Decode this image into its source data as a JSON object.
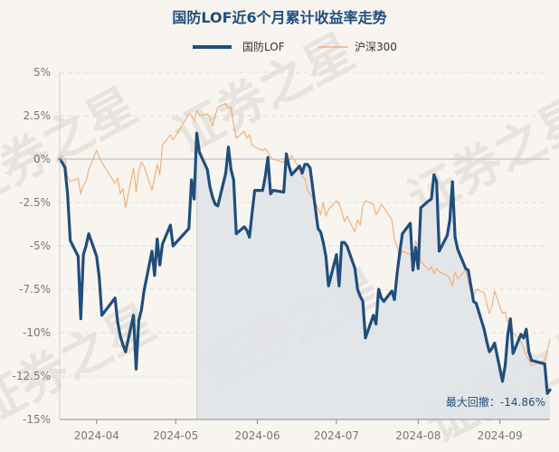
{
  "chart_data": {
    "type": "line",
    "title": "国防LOF近6个月累计收益率走势",
    "legend_position": "top-center",
    "grid": true,
    "ylim": [
      -15,
      5
    ],
    "y_ticks": [
      5,
      2.5,
      0,
      -2.5,
      -5,
      -7.5,
      -10,
      -12.5,
      -15
    ],
    "y_tick_labels": [
      "5%",
      "2.5%",
      "0%",
      "-2.5%",
      "-5%",
      "-7.5%",
      "-10%",
      "-12.5%",
      "-15%"
    ],
    "x_range": [
      "2024-03-18",
      "2024-09-20"
    ],
    "x_ticks": [
      "2024-04-01",
      "2024-05-01",
      "2024-06-01",
      "2024-07-01",
      "2024-08-01",
      "2024-09-01"
    ],
    "x_tick_labels": [
      "2024-04",
      "2024-05",
      "2024-06",
      "2024-07",
      "2024-08",
      "2024-09"
    ],
    "series": [
      {
        "name": "国防LOF",
        "color": "#1f4e7d",
        "values": [
          [
            "2024-03-18",
            0.0
          ],
          [
            "2024-03-19",
            -0.2
          ],
          [
            "2024-03-20",
            -0.5
          ],
          [
            "2024-03-21",
            -2.0
          ],
          [
            "2024-03-22",
            -4.7
          ],
          [
            "2024-03-25",
            -5.6
          ],
          [
            "2024-03-26",
            -9.2
          ],
          [
            "2024-03-27",
            -5.5
          ],
          [
            "2024-03-28",
            -5.0
          ],
          [
            "2024-03-29",
            -4.3
          ],
          [
            "2024-04-01",
            -5.6
          ],
          [
            "2024-04-02",
            -6.8
          ],
          [
            "2024-04-03",
            -9.0
          ],
          [
            "2024-04-08",
            -8.0
          ],
          [
            "2024-04-09",
            -9.4
          ],
          [
            "2024-04-10",
            -10.2
          ],
          [
            "2024-04-11",
            -10.7
          ],
          [
            "2024-04-12",
            -11.1
          ],
          [
            "2024-04-15",
            -9.0
          ],
          [
            "2024-04-16",
            -12.1
          ],
          [
            "2024-04-17",
            -9.3
          ],
          [
            "2024-04-18",
            -8.7
          ],
          [
            "2024-04-19",
            -7.6
          ],
          [
            "2024-04-22",
            -5.3
          ],
          [
            "2024-04-23",
            -6.7
          ],
          [
            "2024-04-24",
            -4.6
          ],
          [
            "2024-04-25",
            -6.1
          ],
          [
            "2024-04-26",
            -4.9
          ],
          [
            "2024-04-29",
            -3.8
          ],
          [
            "2024-04-30",
            -5.0
          ],
          [
            "2024-05-06",
            -4.0
          ],
          [
            "2024-05-07",
            -1.2
          ],
          [
            "2024-05-08",
            -2.3
          ],
          [
            "2024-05-09",
            1.5
          ],
          [
            "2024-05-10",
            0.4
          ],
          [
            "2024-05-13",
            -0.6
          ],
          [
            "2024-05-14",
            -1.6
          ],
          [
            "2024-05-15",
            -2.2
          ],
          [
            "2024-05-16",
            -2.6
          ],
          [
            "2024-05-17",
            -2.7
          ],
          [
            "2024-05-20",
            -0.8
          ],
          [
            "2024-05-21",
            0.7
          ],
          [
            "2024-05-22",
            -0.6
          ],
          [
            "2024-05-23",
            -1.2
          ],
          [
            "2024-05-24",
            -4.3
          ],
          [
            "2024-05-27",
            -3.9
          ],
          [
            "2024-05-28",
            -4.1
          ],
          [
            "2024-05-29",
            -4.5
          ],
          [
            "2024-05-30",
            -3.1
          ],
          [
            "2024-05-31",
            -1.8
          ],
          [
            "2024-06-03",
            -1.8
          ],
          [
            "2024-06-04",
            -1.0
          ],
          [
            "2024-06-05",
            0.1
          ],
          [
            "2024-06-06",
            -2.0
          ],
          [
            "2024-06-07",
            -1.8
          ],
          [
            "2024-06-11",
            -1.9
          ],
          [
            "2024-06-12",
            0.3
          ],
          [
            "2024-06-13",
            -0.4
          ],
          [
            "2024-06-14",
            -0.9
          ],
          [
            "2024-06-17",
            -0.4
          ],
          [
            "2024-06-18",
            -0.8
          ],
          [
            "2024-06-19",
            -0.3
          ],
          [
            "2024-06-20",
            -0.3
          ],
          [
            "2024-06-21",
            -0.5
          ],
          [
            "2024-06-24",
            -4.0
          ],
          [
            "2024-06-25",
            -4.2
          ],
          [
            "2024-06-26",
            -4.8
          ],
          [
            "2024-06-27",
            -5.6
          ],
          [
            "2024-06-28",
            -7.3
          ],
          [
            "2024-07-01",
            -5.5
          ],
          [
            "2024-07-02",
            -7.3
          ],
          [
            "2024-07-03",
            -4.8
          ],
          [
            "2024-07-04",
            -4.8
          ],
          [
            "2024-07-05",
            -5.0
          ],
          [
            "2024-07-08",
            -6.3
          ],
          [
            "2024-07-09",
            -7.5
          ],
          [
            "2024-07-10",
            -7.9
          ],
          [
            "2024-07-11",
            -8.2
          ],
          [
            "2024-07-12",
            -10.3
          ],
          [
            "2024-07-15",
            -9.0
          ],
          [
            "2024-07-16",
            -9.5
          ],
          [
            "2024-07-17",
            -7.5
          ],
          [
            "2024-07-18",
            -8.0
          ],
          [
            "2024-07-19",
            -8.2
          ],
          [
            "2024-07-22",
            -7.6
          ],
          [
            "2024-07-23",
            -8.1
          ],
          [
            "2024-07-24",
            -6.6
          ],
          [
            "2024-07-25",
            -5.4
          ],
          [
            "2024-07-26",
            -4.3
          ],
          [
            "2024-07-29",
            -3.7
          ],
          [
            "2024-07-30",
            -6.4
          ],
          [
            "2024-07-31",
            -5.1
          ],
          [
            "2024-08-01",
            -6.3
          ],
          [
            "2024-08-02",
            -2.8
          ],
          [
            "2024-08-05",
            -2.4
          ],
          [
            "2024-08-06",
            -2.3
          ],
          [
            "2024-08-07",
            -0.9
          ],
          [
            "2024-08-08",
            -1.3
          ],
          [
            "2024-08-09",
            -5.3
          ],
          [
            "2024-08-12",
            -4.4
          ],
          [
            "2024-08-13",
            -3.5
          ],
          [
            "2024-08-14",
            -1.3
          ],
          [
            "2024-08-15",
            -4.5
          ],
          [
            "2024-08-16",
            -5.2
          ],
          [
            "2024-08-19",
            -6.3
          ],
          [
            "2024-08-20",
            -6.4
          ],
          [
            "2024-08-21",
            -7.3
          ],
          [
            "2024-08-22",
            -8.2
          ],
          [
            "2024-08-23",
            -8.3
          ],
          [
            "2024-08-26",
            -9.8
          ],
          [
            "2024-08-27",
            -10.5
          ],
          [
            "2024-08-28",
            -11.1
          ],
          [
            "2024-08-29",
            -10.9
          ],
          [
            "2024-08-30",
            -10.6
          ],
          [
            "2024-09-02",
            -12.8
          ],
          [
            "2024-09-03",
            -11.9
          ],
          [
            "2024-09-04",
            -10.1
          ],
          [
            "2024-09-05",
            -9.2
          ],
          [
            "2024-09-06",
            -11.2
          ],
          [
            "2024-09-09",
            -10.1
          ],
          [
            "2024-09-10",
            -10.3
          ],
          [
            "2024-09-11",
            -9.8
          ],
          [
            "2024-09-12",
            -11.1
          ],
          [
            "2024-09-13",
            -11.6
          ],
          [
            "2024-09-18",
            -11.8
          ],
          [
            "2024-09-19",
            -13.5
          ],
          [
            "2024-09-20",
            -13.3
          ]
        ]
      },
      {
        "name": "沪深300",
        "color": "#f2b07a",
        "values": [
          [
            "2024-03-18",
            0.0
          ],
          [
            "2024-03-19",
            0.2
          ],
          [
            "2024-03-20",
            0.0
          ],
          [
            "2024-03-21",
            -1.0
          ],
          [
            "2024-03-22",
            -1.3
          ],
          [
            "2024-03-25",
            -1.1
          ],
          [
            "2024-03-26",
            -2.0
          ],
          [
            "2024-03-27",
            -1.5
          ],
          [
            "2024-03-28",
            -1.3
          ],
          [
            "2024-03-29",
            -0.6
          ],
          [
            "2024-04-01",
            0.5
          ],
          [
            "2024-04-02",
            0.1
          ],
          [
            "2024-04-03",
            -0.2
          ],
          [
            "2024-04-08",
            -1.4
          ],
          [
            "2024-04-09",
            -1.1
          ],
          [
            "2024-04-10",
            -2.0
          ],
          [
            "2024-04-11",
            -1.7
          ],
          [
            "2024-04-12",
            -2.8
          ],
          [
            "2024-04-15",
            -0.5
          ],
          [
            "2024-04-16",
            -1.9
          ],
          [
            "2024-04-17",
            -0.7
          ],
          [
            "2024-04-18",
            -0.2
          ],
          [
            "2024-04-19",
            -0.4
          ],
          [
            "2024-04-22",
            -1.8
          ],
          [
            "2024-04-23",
            -1.1
          ],
          [
            "2024-04-24",
            -0.3
          ],
          [
            "2024-04-25",
            -0.9
          ],
          [
            "2024-04-26",
            0.8
          ],
          [
            "2024-04-29",
            1.4
          ],
          [
            "2024-04-30",
            1.1
          ],
          [
            "2024-05-06",
            2.6
          ],
          [
            "2024-05-07",
            2.5
          ],
          [
            "2024-05-08",
            2.2
          ],
          [
            "2024-05-09",
            2.8
          ],
          [
            "2024-05-10",
            2.5
          ],
          [
            "2024-05-13",
            2.6
          ],
          [
            "2024-05-14",
            2.4
          ],
          [
            "2024-05-15",
            1.9
          ],
          [
            "2024-05-16",
            2.5
          ],
          [
            "2024-05-17",
            3.0
          ],
          [
            "2024-05-20",
            3.2
          ],
          [
            "2024-05-21",
            2.9
          ],
          [
            "2024-05-22",
            3.0
          ],
          [
            "2024-05-23",
            2.0
          ],
          [
            "2024-05-24",
            1.2
          ],
          [
            "2024-05-27",
            1.6
          ],
          [
            "2024-05-28",
            1.2
          ],
          [
            "2024-05-29",
            1.4
          ],
          [
            "2024-05-30",
            0.8
          ],
          [
            "2024-05-31",
            0.7
          ],
          [
            "2024-06-03",
            0.5
          ],
          [
            "2024-06-04",
            0.6
          ],
          [
            "2024-06-05",
            0.4
          ],
          [
            "2024-06-06",
            0.1
          ],
          [
            "2024-06-07",
            0.0
          ],
          [
            "2024-06-11",
            -0.2
          ],
          [
            "2024-06-12",
            0.3
          ],
          [
            "2024-06-13",
            -0.1
          ],
          [
            "2024-06-14",
            0.2
          ],
          [
            "2024-06-17",
            -0.6
          ],
          [
            "2024-06-18",
            -1.0
          ],
          [
            "2024-06-19",
            -1.1
          ],
          [
            "2024-06-20",
            -1.8
          ],
          [
            "2024-06-21",
            -2.0
          ],
          [
            "2024-06-24",
            -2.8
          ],
          [
            "2024-06-25",
            -3.2
          ],
          [
            "2024-06-26",
            -2.5
          ],
          [
            "2024-06-27",
            -3.3
          ],
          [
            "2024-06-28",
            -2.9
          ],
          [
            "2024-07-01",
            -2.4
          ],
          [
            "2024-07-02",
            -2.6
          ],
          [
            "2024-07-03",
            -3.0
          ],
          [
            "2024-07-04",
            -3.6
          ],
          [
            "2024-07-05",
            -3.3
          ],
          [
            "2024-07-08",
            -4.2
          ],
          [
            "2024-07-09",
            -3.5
          ],
          [
            "2024-07-10",
            -3.8
          ],
          [
            "2024-07-11",
            -2.7
          ],
          [
            "2024-07-12",
            -2.4
          ],
          [
            "2024-07-15",
            -2.6
          ],
          [
            "2024-07-16",
            -3.2
          ],
          [
            "2024-07-17",
            -3.0
          ],
          [
            "2024-07-18",
            -2.6
          ],
          [
            "2024-07-19",
            -2.8
          ],
          [
            "2024-07-22",
            -3.5
          ],
          [
            "2024-07-23",
            -4.6
          ],
          [
            "2024-07-24",
            -5.0
          ],
          [
            "2024-07-25",
            -5.7
          ],
          [
            "2024-07-26",
            -5.3
          ],
          [
            "2024-07-29",
            -5.5
          ],
          [
            "2024-07-30",
            -6.0
          ],
          [
            "2024-07-31",
            -4.7
          ],
          [
            "2024-08-01",
            -5.1
          ],
          [
            "2024-08-02",
            -5.9
          ],
          [
            "2024-08-05",
            -6.4
          ],
          [
            "2024-08-06",
            -6.2
          ],
          [
            "2024-08-07",
            -6.6
          ],
          [
            "2024-08-08",
            -6.3
          ],
          [
            "2024-08-09",
            -6.5
          ],
          [
            "2024-08-12",
            -6.7
          ],
          [
            "2024-08-13",
            -6.9
          ],
          [
            "2024-08-14",
            -7.3
          ],
          [
            "2024-08-15",
            -6.5
          ],
          [
            "2024-08-16",
            -6.9
          ],
          [
            "2024-08-19",
            -6.4
          ],
          [
            "2024-08-20",
            -7.1
          ],
          [
            "2024-08-21",
            -7.6
          ],
          [
            "2024-08-22",
            -7.9
          ],
          [
            "2024-08-23",
            -7.5
          ],
          [
            "2024-08-26",
            -7.7
          ],
          [
            "2024-08-27",
            -8.3
          ],
          [
            "2024-08-28",
            -8.9
          ],
          [
            "2024-08-29",
            -8.5
          ],
          [
            "2024-08-30",
            -7.6
          ],
          [
            "2024-09-02",
            -8.9
          ],
          [
            "2024-09-03",
            -8.8
          ],
          [
            "2024-09-04",
            -9.4
          ],
          [
            "2024-09-05",
            -9.2
          ],
          [
            "2024-09-06",
            -10.0
          ],
          [
            "2024-09-09",
            -10.5
          ],
          [
            "2024-09-10",
            -10.9
          ],
          [
            "2024-09-11",
            -11.3
          ],
          [
            "2024-09-12",
            -11.6
          ],
          [
            "2024-09-13",
            -11.9
          ],
          [
            "2024-09-18",
            -11.6
          ],
          [
            "2024-09-19",
            -11.0
          ],
          [
            "2024-09-20",
            -10.4
          ]
        ]
      }
    ],
    "max_drawdown": {
      "label": "最大回撤：-14.86%",
      "start": "2024-05-09",
      "end": "2024-09-20",
      "fill_color": "#dfe3e7"
    },
    "watermark": "证券之星"
  }
}
